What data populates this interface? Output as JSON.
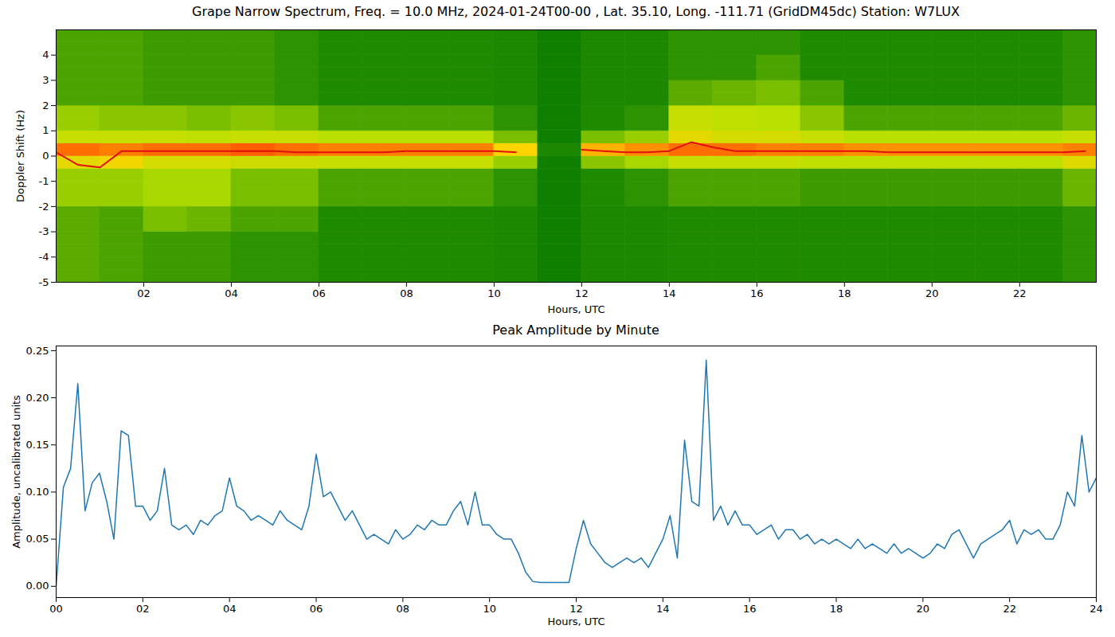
{
  "chart_data": [
    {
      "type": "heatmap",
      "title": "Grape Narrow Spectrum, Freq. = 10.0 MHz, 2024-01-24T00-00 , Lat.  35.10, Long. -111.71 (GridDM45dc) Station: W7LUX",
      "x_label": "Hours, UTC",
      "y_label": "Doppler Shift (Hz)",
      "xlim": [
        0,
        23.75
      ],
      "xticks": [
        {
          "value": 2,
          "label": "02"
        },
        {
          "value": 4,
          "label": "04"
        },
        {
          "value": 6,
          "label": "06"
        },
        {
          "value": 8,
          "label": "08"
        },
        {
          "value": 10,
          "label": "10"
        },
        {
          "value": 12,
          "label": "12"
        },
        {
          "value": 14,
          "label": "14"
        },
        {
          "value": 16,
          "label": "16"
        },
        {
          "value": 18,
          "label": "18"
        },
        {
          "value": 20,
          "label": "20"
        },
        {
          "value": 22,
          "label": "22"
        }
      ],
      "ylim": [
        -5,
        5
      ],
      "yticks": [
        -5,
        -4,
        -3,
        -2,
        -1,
        0,
        1,
        2,
        3,
        4
      ],
      "x_bins": [
        0,
        1,
        2,
        3,
        4,
        5,
        6,
        7,
        8,
        9,
        10,
        11,
        12,
        13,
        14,
        15,
        16,
        17,
        18,
        19,
        20,
        21,
        22,
        23,
        24
      ],
      "y_bins": [
        -5,
        -4.5,
        -4,
        -3.5,
        -3,
        -2.5,
        -2,
        -1.5,
        -1,
        -0.5,
        0,
        0.5,
        1,
        1.5,
        2,
        2.5,
        3,
        3.5,
        4,
        4.5,
        5
      ],
      "color_stops": [
        0,
        1,
        2,
        3,
        4
      ],
      "colors": [
        "#007400",
        "#1e8a00",
        "#b8e000",
        "#ffd400",
        "#ff2a00"
      ],
      "cells": [
        [
          1.4,
          1.4,
          1.4,
          1.4,
          1.4,
          1.4,
          1.8,
          1.8,
          1.8,
          2.6,
          3.6,
          2.2,
          1.8,
          1.8,
          1.3,
          1.3,
          1.3,
          1.3,
          1.3,
          1.3
        ],
        [
          1.3,
          1.3,
          1.3,
          1.3,
          1.3,
          1.3,
          1.8,
          1.8,
          1.8,
          2.8,
          3.5,
          2.2,
          1.7,
          1.7,
          1.3,
          1.3,
          1.3,
          1.3,
          1.3,
          1.3
        ],
        [
          1.2,
          1.2,
          1.2,
          1.2,
          1.6,
          1.6,
          1.9,
          1.9,
          1.9,
          2.4,
          3.6,
          2.2,
          1.7,
          1.7,
          1.2,
          1.2,
          1.2,
          1.2,
          1.2,
          1.2
        ],
        [
          1.2,
          1.2,
          1.2,
          1.2,
          1.5,
          1.5,
          1.9,
          1.9,
          1.9,
          2.4,
          3.6,
          2.1,
          1.6,
          1.6,
          1.2,
          1.2,
          1.2,
          1.2,
          1.2,
          1.2
        ],
        [
          1.1,
          1.1,
          1.1,
          1.1,
          1.3,
          1.3,
          1.6,
          1.6,
          1.6,
          2.3,
          3.7,
          2.2,
          1.7,
          1.7,
          1.2,
          1.2,
          1.2,
          1.2,
          1.2,
          1.2
        ],
        [
          1.1,
          1.1,
          1.1,
          1.1,
          1.3,
          1.3,
          1.6,
          1.6,
          1.6,
          2.3,
          3.6,
          2.2,
          1.6,
          1.6,
          1.1,
          1.1,
          1.1,
          1.1,
          1.1,
          1.1
        ],
        [
          1.0,
          1.0,
          1.0,
          1.0,
          1.0,
          1.0,
          1.3,
          1.3,
          1.3,
          2.2,
          3.5,
          2.0,
          1.3,
          1.3,
          1.0,
          1.0,
          1.0,
          1.0,
          1.0,
          1.0
        ],
        [
          1.0,
          1.0,
          1.0,
          1.0,
          1.0,
          1.0,
          1.3,
          1.3,
          1.3,
          2.2,
          3.5,
          2.0,
          1.3,
          1.3,
          1.0,
          1.0,
          1.0,
          1.0,
          1.0,
          1.0
        ],
        [
          1.0,
          1.0,
          1.0,
          1.0,
          1.0,
          1.0,
          1.3,
          1.3,
          1.3,
          2.2,
          3.5,
          2.0,
          1.3,
          1.3,
          1.0,
          1.0,
          1.0,
          1.0,
          1.0,
          1.0
        ],
        [
          1.0,
          1.0,
          1.0,
          1.0,
          1.0,
          1.0,
          1.3,
          1.3,
          1.3,
          2.2,
          3.5,
          2.0,
          1.3,
          1.3,
          1.0,
          1.0,
          1.0,
          1.0,
          1.0,
          1.0
        ],
        [
          0.9,
          0.9,
          0.9,
          0.9,
          0.9,
          0.9,
          1.1,
          1.1,
          1.1,
          1.8,
          3.0,
          1.6,
          1.1,
          1.1,
          0.9,
          0.9,
          0.9,
          0.9,
          0.9,
          0.9
        ],
        [
          0.5,
          0.5,
          0.5,
          0.5,
          0.5,
          0.5,
          0.5,
          0.5,
          0.5,
          0.5,
          0.9,
          0.5,
          0.5,
          0.5,
          0.5,
          0.5,
          0.5,
          0.5,
          0.5,
          0.5
        ],
        [
          0.9,
          0.9,
          0.9,
          0.9,
          0.9,
          0.9,
          1.0,
          1.0,
          1.0,
          1.7,
          3.2,
          1.6,
          1.0,
          1.0,
          0.9,
          0.9,
          0.9,
          0.9,
          0.9,
          0.9
        ],
        [
          0.9,
          0.9,
          0.9,
          0.9,
          0.9,
          0.9,
          1.1,
          1.1,
          1.1,
          1.9,
          3.4,
          1.8,
          1.1,
          1.1,
          0.9,
          0.9,
          0.9,
          0.9,
          0.9,
          0.9
        ],
        [
          1.0,
          1.0,
          1.0,
          1.0,
          1.0,
          1.0,
          1.3,
          1.3,
          1.3,
          2.2,
          3.6,
          2.6,
          2.2,
          2.2,
          1.4,
          1.4,
          1.1,
          1.1,
          1.1,
          1.1
        ],
        [
          1.0,
          1.0,
          1.0,
          1.0,
          1.0,
          1.0,
          1.3,
          1.3,
          1.3,
          2.2,
          3.6,
          2.4,
          2.1,
          2.1,
          1.5,
          1.5,
          1.1,
          1.1,
          1.1,
          1.1
        ],
        [
          1.0,
          1.0,
          1.0,
          1.0,
          1.0,
          1.0,
          1.3,
          1.3,
          1.3,
          2.2,
          3.5,
          2.4,
          2.0,
          2.0,
          1.6,
          1.6,
          1.3,
          1.3,
          1.1,
          1.1
        ],
        [
          1.0,
          1.0,
          1.0,
          1.0,
          1.0,
          1.0,
          1.2,
          1.2,
          1.2,
          2.1,
          3.5,
          2.2,
          1.7,
          1.7,
          1.3,
          1.3,
          1.0,
          1.0,
          1.0,
          1.0
        ],
        [
          1.0,
          1.0,
          1.0,
          1.0,
          1.0,
          1.0,
          1.2,
          1.2,
          1.2,
          2.1,
          3.4,
          2.0,
          1.3,
          1.3,
          1.0,
          1.0,
          1.0,
          1.0,
          1.0,
          1.0
        ],
        [
          1.0,
          1.0,
          1.0,
          1.0,
          1.0,
          1.0,
          1.2,
          1.2,
          1.2,
          2.1,
          3.4,
          2.0,
          1.3,
          1.3,
          1.0,
          1.0,
          1.0,
          1.0,
          1.0,
          1.0
        ],
        [
          1.0,
          1.0,
          1.0,
          1.0,
          1.0,
          1.0,
          1.2,
          1.2,
          1.2,
          2.1,
          3.4,
          2.0,
          1.3,
          1.3,
          1.0,
          1.0,
          1.0,
          1.0,
          1.0,
          1.0
        ],
        [
          1.0,
          1.0,
          1.0,
          1.0,
          1.0,
          1.0,
          1.2,
          1.2,
          1.2,
          2.1,
          3.4,
          2.0,
          1.3,
          1.3,
          1.0,
          1.0,
          1.0,
          1.0,
          1.0,
          1.0
        ],
        [
          1.0,
          1.0,
          1.0,
          1.0,
          1.0,
          1.0,
          1.2,
          1.2,
          1.2,
          2.1,
          3.4,
          2.0,
          1.3,
          1.3,
          1.0,
          1.0,
          1.0,
          1.0,
          1.0,
          1.0
        ],
        [
          1.1,
          1.1,
          1.1,
          1.1,
          1.1,
          1.1,
          1.5,
          1.5,
          1.5,
          2.5,
          3.5,
          2.2,
          1.5,
          1.5,
          1.1,
          1.1,
          1.1,
          1.1,
          1.1,
          1.1
        ]
      ],
      "series": [
        {
          "type": "line",
          "color": "#e01010",
          "x": [
            0,
            0.5,
            1,
            1.5,
            2,
            2.5,
            3,
            3.5,
            4,
            4.5,
            5,
            5.5,
            6,
            6.5,
            7,
            7.5,
            8,
            8.5,
            9,
            9.5,
            10,
            10.5,
            11,
            11.5,
            12,
            12.5,
            13,
            13.5,
            14,
            14.5,
            15,
            15.5,
            16,
            16.5,
            17,
            17.5,
            18,
            18.5,
            19,
            19.5,
            20,
            20.5,
            21,
            21.5,
            22,
            22.5,
            23,
            23.5
          ],
          "values": [
            0.15,
            -0.35,
            -0.45,
            0.2,
            0.2,
            0.2,
            0.2,
            0.2,
            0.2,
            0.2,
            0.2,
            0.15,
            0.15,
            0.15,
            0.15,
            0.15,
            0.2,
            0.2,
            0.2,
            0.2,
            0.2,
            0.15,
            null,
            null,
            0.25,
            0.2,
            0.15,
            0.15,
            0.2,
            0.55,
            0.35,
            0.2,
            0.2,
            0.2,
            0.2,
            0.2,
            0.2,
            0.2,
            0.15,
            0.15,
            0.15,
            0.15,
            0.15,
            0.15,
            0.15,
            0.15,
            0.15,
            0.2
          ]
        }
      ]
    },
    {
      "type": "line",
      "title": "Peak Amplitude by Minute",
      "x_label": "Hours, UTC",
      "y_label": "Amplitude, uncalibrated units",
      "color": "#1f77b4",
      "xlim": [
        0,
        24
      ],
      "xticks": [
        {
          "value": 0,
          "label": "00"
        },
        {
          "value": 2,
          "label": "02"
        },
        {
          "value": 4,
          "label": "04"
        },
        {
          "value": 6,
          "label": "06"
        },
        {
          "value": 8,
          "label": "08"
        },
        {
          "value": 10,
          "label": "10"
        },
        {
          "value": 12,
          "label": "12"
        },
        {
          "value": 14,
          "label": "14"
        },
        {
          "value": 16,
          "label": "16"
        },
        {
          "value": 18,
          "label": "18"
        },
        {
          "value": 20,
          "label": "20"
        },
        {
          "value": 22,
          "label": "22"
        },
        {
          "value": 24,
          "label": "24"
        }
      ],
      "ylim": [
        -0.012,
        0.255
      ],
      "yticks": [
        {
          "value": 0,
          "label": "0.00"
        },
        {
          "value": 0.05,
          "label": "0.05"
        },
        {
          "value": 0.1,
          "label": "0.10"
        },
        {
          "value": 0.15,
          "label": "0.15"
        },
        {
          "value": 0.2,
          "label": "0.20"
        },
        {
          "value": 0.25,
          "label": "0.25"
        }
      ],
      "x": [
        0,
        0.167,
        0.333,
        0.5,
        0.667,
        0.833,
        1,
        1.167,
        1.333,
        1.5,
        1.667,
        1.833,
        2,
        2.167,
        2.333,
        2.5,
        2.667,
        2.833,
        3,
        3.167,
        3.333,
        3.5,
        3.667,
        3.833,
        4,
        4.167,
        4.333,
        4.5,
        4.667,
        4.833,
        5,
        5.167,
        5.333,
        5.5,
        5.667,
        5.833,
        6,
        6.167,
        6.333,
        6.5,
        6.667,
        6.833,
        7,
        7.167,
        7.333,
        7.5,
        7.667,
        7.833,
        8,
        8.167,
        8.333,
        8.5,
        8.667,
        8.833,
        9,
        9.167,
        9.333,
        9.5,
        9.667,
        9.833,
        10,
        10.167,
        10.333,
        10.5,
        10.667,
        10.833,
        11,
        11.167,
        11.333,
        11.5,
        11.667,
        11.833,
        12,
        12.167,
        12.333,
        12.5,
        12.667,
        12.833,
        13,
        13.167,
        13.333,
        13.5,
        13.667,
        13.833,
        14,
        14.167,
        14.333,
        14.5,
        14.667,
        14.833,
        15,
        15.167,
        15.333,
        15.5,
        15.667,
        15.833,
        16,
        16.167,
        16.333,
        16.5,
        16.667,
        16.833,
        17,
        17.167,
        17.333,
        17.5,
        17.667,
        17.833,
        18,
        18.167,
        18.333,
        18.5,
        18.667,
        18.833,
        19,
        19.167,
        19.333,
        19.5,
        19.667,
        19.833,
        20,
        20.167,
        20.333,
        20.5,
        20.667,
        20.833,
        21,
        21.167,
        21.333,
        21.5,
        21.667,
        21.833,
        22,
        22.167,
        22.333,
        22.5,
        22.667,
        22.833,
        23,
        23.167,
        23.333,
        23.5,
        23.667,
        23.833,
        24
      ],
      "values": [
        0.0,
        0.105,
        0.125,
        0.215,
        0.08,
        0.11,
        0.12,
        0.09,
        0.05,
        0.165,
        0.16,
        0.085,
        0.085,
        0.07,
        0.08,
        0.125,
        0.065,
        0.06,
        0.065,
        0.055,
        0.07,
        0.065,
        0.075,
        0.08,
        0.115,
        0.085,
        0.08,
        0.07,
        0.075,
        0.07,
        0.065,
        0.08,
        0.07,
        0.065,
        0.06,
        0.085,
        0.14,
        0.095,
        0.1,
        0.085,
        0.07,
        0.08,
        0.065,
        0.05,
        0.055,
        0.05,
        0.045,
        0.06,
        0.05,
        0.055,
        0.065,
        0.06,
        0.07,
        0.065,
        0.065,
        0.08,
        0.09,
        0.065,
        0.1,
        0.065,
        0.065,
        0.055,
        0.05,
        0.05,
        0.035,
        0.015,
        0.005,
        0.004,
        0.004,
        0.004,
        0.004,
        0.004,
        0.04,
        0.07,
        0.045,
        0.035,
        0.025,
        0.02,
        0.025,
        0.03,
        0.025,
        0.03,
        0.02,
        0.035,
        0.05,
        0.075,
        0.03,
        0.155,
        0.09,
        0.085,
        0.24,
        0.07,
        0.085,
        0.065,
        0.08,
        0.065,
        0.065,
        0.055,
        0.06,
        0.065,
        0.05,
        0.06,
        0.06,
        0.05,
        0.055,
        0.045,
        0.05,
        0.045,
        0.05,
        0.045,
        0.04,
        0.05,
        0.04,
        0.045,
        0.04,
        0.035,
        0.045,
        0.035,
        0.04,
        0.035,
        0.03,
        0.035,
        0.045,
        0.04,
        0.055,
        0.06,
        0.045,
        0.03,
        0.045,
        0.05,
        0.055,
        0.06,
        0.07,
        0.045,
        0.06,
        0.055,
        0.06,
        0.05,
        0.05,
        0.065,
        0.1,
        0.085,
        0.16,
        0.1,
        0.115
      ]
    }
  ]
}
